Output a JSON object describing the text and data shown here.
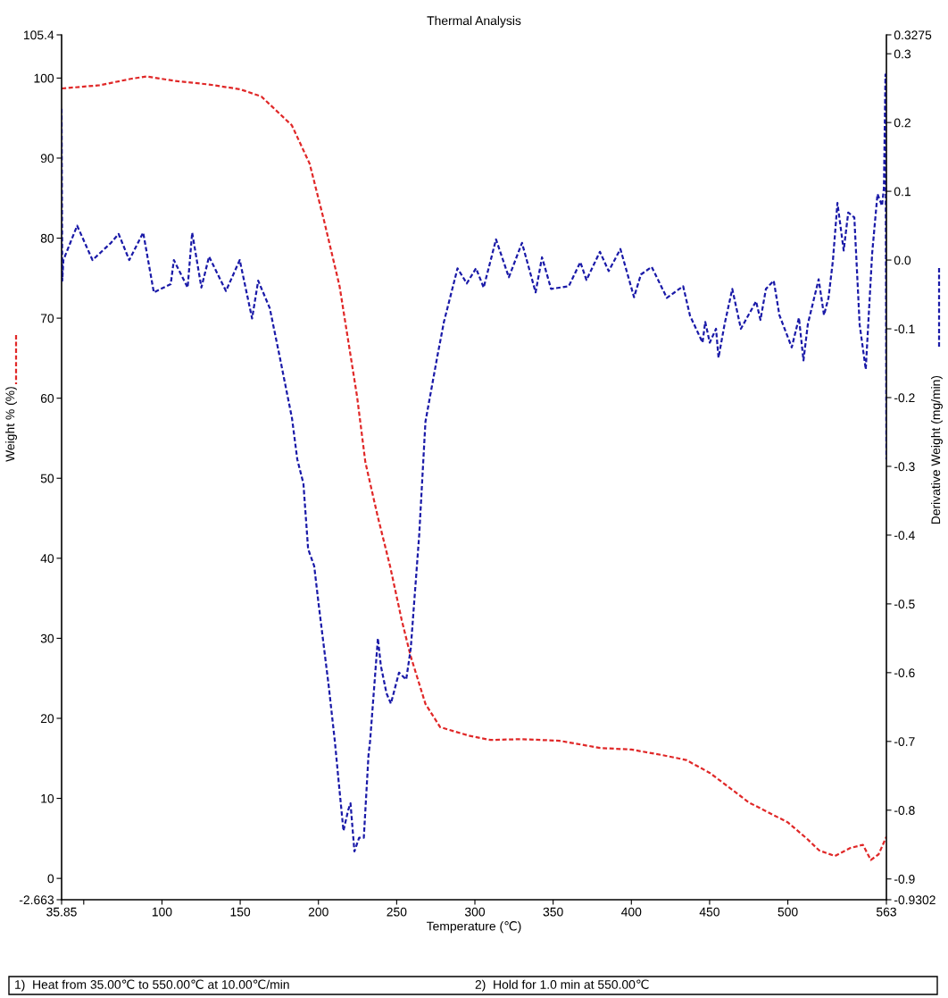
{
  "chart_data": {
    "type": "line",
    "title": "Thermal Analysis",
    "xlabel": "Temperature (℃)",
    "ylabel": "Weight % (%)",
    "y2label": "Derivative Weight (mg/min)",
    "annotations": [
      "1)  Heat from 35.00℃ to 550.00℃ at 10.00℃/min",
      "2)  Hold for 1.0 min at 550.00℃"
    ],
    "xlim": [
      35.85,
      563
    ],
    "xticks": [
      35.85,
      {
        "value": 50,
        "label": null
      },
      100,
      150,
      200,
      250,
      300,
      350,
      400,
      450,
      500,
      563
    ],
    "ylim": [
      -2.663,
      105.4
    ],
    "yticks": [
      -2.663,
      0,
      10,
      20,
      30,
      40,
      50,
      60,
      70,
      80,
      90,
      100,
      105.4
    ],
    "y2lim": [
      -0.9302,
      0.3275
    ],
    "y2ticks": [
      -0.9302,
      -0.9,
      -0.8,
      -0.7,
      -0.6,
      -0.5,
      -0.4,
      -0.3,
      -0.2,
      -0.1,
      {
        "value": 0,
        "label": "0.0"
      },
      0.1,
      0.2,
      0.3,
      0.3275
    ],
    "grid": false,
    "line_style": "dashed",
    "marker": "none",
    "series": [
      {
        "color": "#e02828",
        "x": [
          36,
          60,
          80,
          90,
          110,
          130,
          150,
          163.5,
          183,
          194.4,
          203.7,
          213.5,
          224.7,
          230,
          237.8,
          245.8,
          253.2,
          258.9,
          268.4,
          277.8,
          296.8,
          310,
          330,
          354,
          380,
          400,
          420,
          435,
          450,
          465,
          475,
          490,
          500,
          512,
          520,
          530,
          540,
          548,
          553,
          558,
          563
        ],
        "values": [
          98.7,
          99.1,
          99.9,
          100.2,
          99.6,
          99.2,
          98.6,
          97.7,
          94.1,
          89.3,
          82.1,
          74,
          60.2,
          52,
          45.3,
          39,
          32.3,
          27.8,
          21.8,
          18.9,
          17.8,
          17.3,
          17.4,
          17.2,
          16.3,
          16.1,
          15.4,
          14.8,
          13.2,
          11,
          9.5,
          8,
          7,
          5,
          3.5,
          2.8,
          3.8,
          4.2,
          2.3,
          3,
          5.2
        ]
      },
      {
        "color": "#1a1aa8",
        "axis": "y2",
        "x": [
          35.85,
          36.3,
          37,
          45.8,
          55.6,
          67.4,
          72.3,
          79.1,
          88,
          94.8,
          105.6,
          107.6,
          116.4,
          119.3,
          125.2,
          130.1,
          140.9,
          149.7,
          157.6,
          161.5,
          168.9,
          175.2,
          183.1,
          186.5,
          190.4,
          193.4,
          197.3,
          200.1,
          206.6,
          210.5,
          213,
          216,
          219,
          220.5,
          223,
          226,
          229,
          232,
          233,
          238,
          239.9,
          243.5,
          246.3,
          251.5,
          256.1,
          259,
          264.4,
          268.4,
          276,
          280.2,
          288.9,
          294.8,
          300.7,
          305.6,
          313.5,
          321.7,
          330.1,
          338.8,
          342.9,
          348.7,
          360,
          367.4,
          371.3,
          379.9,
          385.5,
          393,
          401.7,
          406.1,
          413,
          422.7,
          433.1,
          437.5,
          445.5,
          447.2,
          450.1,
          454.1,
          455.7,
          459.6,
          464.5,
          470,
          479.7,
          482.5,
          486,
          491,
          494.6,
          502.5,
          507.1,
          510,
          512.8,
          519.7,
          523.1,
          526,
          528.8,
          531.7,
          535.7,
          538.6,
          542.5,
          545.9,
          549.8,
          553.9,
          557.3,
          560.2,
          561.4,
          562.4,
          563
        ],
        "values": [
          0.22,
          -0.03,
          0.0,
          0.05,
          0.0,
          0.025,
          0.038,
          0.0,
          0.04,
          -0.047,
          -0.035,
          0.0,
          -0.04,
          0.04,
          -0.04,
          0.005,
          -0.045,
          0.0,
          -0.085,
          -0.03,
          -0.07,
          -0.14,
          -0.23,
          -0.29,
          -0.325,
          -0.42,
          -0.445,
          -0.5,
          -0.62,
          -0.7,
          -0.76,
          -0.83,
          -0.8,
          -0.79,
          -0.86,
          -0.84,
          -0.84,
          -0.72,
          -0.7,
          -0.55,
          -0.59,
          -0.63,
          -0.645,
          -0.6,
          -0.61,
          -0.565,
          -0.4,
          -0.235,
          -0.14,
          -0.09,
          -0.012,
          -0.034,
          -0.012,
          -0.04,
          0.03,
          -0.025,
          0.025,
          -0.047,
          0.004,
          -0.042,
          -0.038,
          -0.003,
          -0.029,
          0.012,
          -0.016,
          0.016,
          -0.054,
          -0.021,
          -0.01,
          -0.055,
          -0.038,
          -0.081,
          -0.12,
          -0.09,
          -0.12,
          -0.1,
          -0.142,
          -0.093,
          -0.042,
          -0.1,
          -0.06,
          -0.087,
          -0.042,
          -0.03,
          -0.08,
          -0.127,
          -0.084,
          -0.146,
          -0.093,
          -0.028,
          -0.08,
          -0.055,
          -0.001,
          0.083,
          0.014,
          0.069,
          0.062,
          -0.094,
          -0.159,
          0.01,
          0.096,
          0.079,
          0.105,
          0.27,
          -0.29
        ]
      }
    ]
  }
}
